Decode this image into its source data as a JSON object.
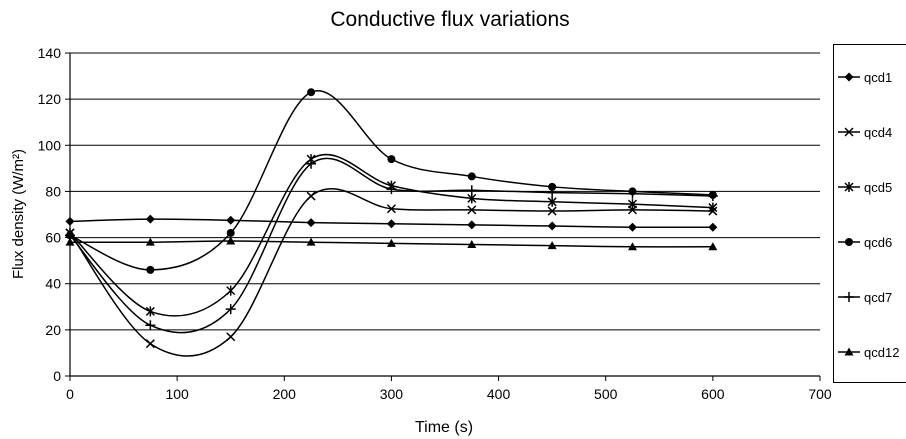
{
  "chart_data": {
    "type": "line",
    "title": "Conductive flux variations",
    "xlabel": "Time (s)",
    "ylabel": "Flux density (W/m²)",
    "xlim": [
      0,
      700
    ],
    "ylim": [
      0,
      140
    ],
    "xticks": [
      0,
      100,
      200,
      300,
      400,
      500,
      600,
      700
    ],
    "yticks": [
      0,
      20,
      40,
      60,
      80,
      100,
      120,
      140
    ],
    "grid": "horizontal",
    "legend_position": "right",
    "smooth": true,
    "x": [
      0,
      75,
      150,
      225,
      300,
      375,
      450,
      525,
      600
    ],
    "series": [
      {
        "name": "qcd1",
        "marker": "diamond",
        "values": [
          67,
          68,
          67.5,
          66.5,
          66,
          65.5,
          65,
          64.5,
          64.5
        ]
      },
      {
        "name": "qcd4",
        "marker": "x",
        "values": [
          62,
          14,
          17,
          78,
          72.5,
          72,
          71.5,
          72,
          71.5
        ]
      },
      {
        "name": "qcd5",
        "marker": "asterisk",
        "values": [
          62,
          28,
          37,
          94,
          82.5,
          77,
          75.5,
          74.5,
          73
        ]
      },
      {
        "name": "qcd6",
        "marker": "circle",
        "values": [
          61,
          46,
          62,
          123,
          94,
          86.5,
          82,
          80,
          78.5
        ]
      },
      {
        "name": "qcd7",
        "marker": "plus",
        "values": [
          61,
          22,
          29,
          92,
          81,
          80.5,
          79.5,
          79,
          78
        ]
      },
      {
        "name": "qcd12",
        "marker": "triangle",
        "values": [
          58,
          58,
          58.5,
          58,
          57.5,
          57,
          56.5,
          56,
          56
        ]
      }
    ]
  }
}
